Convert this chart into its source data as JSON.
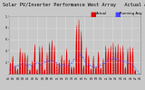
{
  "title": "Solar PV/Inverter Performance West Array   Actual & Running Average Power Output",
  "bg_color": "#c8c8c8",
  "plot_bg": "#c8c8c8",
  "bar_color": "#dd0000",
  "avg_color": "#4444ff",
  "grid_color": "#aaaaaa",
  "ylim": [
    0,
    1.0
  ],
  "n_points": 700,
  "title_fontsize": 3.8,
  "tick_fontsize": 2.2,
  "legend_fontsize": 2.8
}
